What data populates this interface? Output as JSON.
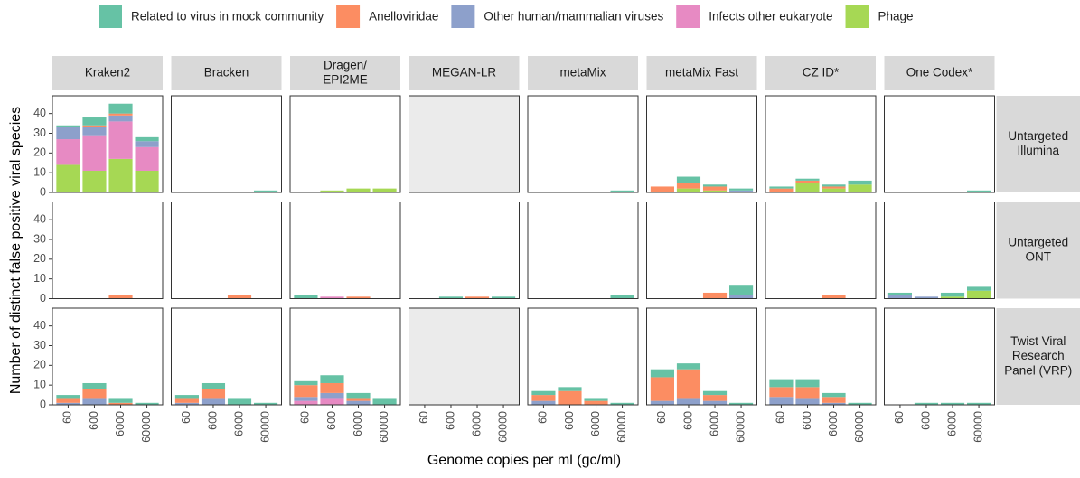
{
  "chart_data": {
    "type": "bar",
    "stacked": true,
    "xlabel": "Genome copies per ml (gc/ml)",
    "ylabel": "Number of distinct false positive viral species",
    "categories": [
      "60",
      "600",
      "6000",
      "60000"
    ],
    "ylim": [
      0,
      49
    ],
    "yticks": [
      0,
      10,
      20,
      30,
      40
    ],
    "series": [
      {
        "name": "Related to virus in mock community",
        "color": "#66c2a5"
      },
      {
        "name": "Anelloviridae",
        "color": "#fc8d62"
      },
      {
        "name": "Other human/mammalian viruses",
        "color": "#8da0cb"
      },
      {
        "name": "Infects other eukaryote",
        "color": "#e78ac3"
      },
      {
        "name": "Phage",
        "color": "#a6d854"
      }
    ],
    "columns": [
      "Kraken2",
      "Bracken",
      "Dragen/\nEPI2ME",
      "MEGAN-LR",
      "metaMix",
      "metaMix Fast",
      "CZ ID*",
      "One Codex*"
    ],
    "rows": [
      "Untargeted\nIllumina",
      "Untargeted\nONT",
      "Twist Viral\nResearch\nPanel (VRP)"
    ],
    "panels": [
      [
        [
          [
            1,
            4,
            5,
            2
          ],
          [
            0,
            1,
            1,
            0
          ],
          [
            6,
            4,
            3,
            3
          ],
          [
            13,
            18,
            19,
            12
          ],
          [
            14,
            11,
            17,
            11
          ]
        ],
        [
          [
            0,
            0,
            0,
            1
          ],
          [
            0,
            0,
            0,
            0
          ],
          [
            0,
            0,
            0,
            0
          ],
          [
            0,
            0,
            0,
            0
          ],
          [
            0,
            0,
            0,
            0
          ]
        ],
        [
          [
            0,
            0,
            0,
            0
          ],
          [
            0,
            0,
            0,
            0
          ],
          [
            0,
            0,
            0,
            0
          ],
          [
            0,
            0,
            0,
            0
          ],
          [
            0,
            1,
            2,
            2
          ]
        ],
        null,
        [
          [
            0,
            0,
            0,
            1
          ],
          [
            0,
            0,
            0,
            0
          ],
          [
            0,
            0,
            0,
            0
          ],
          [
            0,
            0,
            0,
            0
          ],
          [
            0,
            0,
            0,
            0
          ]
        ],
        [
          [
            0,
            3,
            1,
            1
          ],
          [
            3,
            3,
            2,
            0
          ],
          [
            0,
            0,
            0,
            1
          ],
          [
            0,
            0,
            0,
            0
          ],
          [
            0,
            2,
            1,
            0
          ]
        ],
        [
          [
            1,
            1,
            1,
            2
          ],
          [
            2,
            1,
            1,
            0
          ],
          [
            0,
            0,
            0,
            0
          ],
          [
            0,
            0,
            0,
            0
          ],
          [
            0,
            5,
            2,
            4
          ]
        ],
        [
          [
            0,
            0,
            0,
            1
          ],
          [
            0,
            0,
            0,
            0
          ],
          [
            0,
            0,
            0,
            0
          ],
          [
            0,
            0,
            0,
            0
          ],
          [
            0,
            0,
            0,
            0
          ]
        ]
      ],
      [
        [
          [
            0,
            0,
            0,
            0
          ],
          [
            0,
            0,
            2,
            0
          ],
          [
            0,
            0,
            0,
            0
          ],
          [
            0,
            0,
            0,
            0
          ],
          [
            0,
            0,
            0,
            0
          ]
        ],
        [
          [
            0,
            0,
            0,
            0
          ],
          [
            0,
            0,
            2,
            0
          ],
          [
            0,
            0,
            0,
            0
          ],
          [
            0,
            0,
            0,
            0
          ],
          [
            0,
            0,
            0,
            0
          ]
        ],
        [
          [
            2,
            0,
            0,
            0
          ],
          [
            0,
            0,
            1,
            0
          ],
          [
            0,
            0,
            0,
            0
          ],
          [
            0,
            1,
            0,
            0
          ],
          [
            0,
            0,
            0,
            0
          ]
        ],
        [
          [
            0,
            1,
            0,
            1
          ],
          [
            0,
            0,
            1,
            0
          ],
          [
            0,
            0,
            0,
            0
          ],
          [
            0,
            0,
            0,
            0
          ],
          [
            0,
            0,
            0,
            0
          ]
        ],
        [
          [
            0,
            0,
            0,
            2
          ],
          [
            0,
            0,
            0,
            0
          ],
          [
            0,
            0,
            0,
            0
          ],
          [
            0,
            0,
            0,
            0
          ],
          [
            0,
            0,
            0,
            0
          ]
        ],
        [
          [
            0,
            0,
            0,
            5
          ],
          [
            0,
            0,
            3,
            0
          ],
          [
            0,
            0,
            0,
            2
          ],
          [
            0,
            0,
            0,
            0
          ],
          [
            0,
            0,
            0,
            0
          ]
        ],
        [
          [
            0,
            0,
            0,
            0
          ],
          [
            0,
            0,
            2,
            0
          ],
          [
            0,
            0,
            0,
            0
          ],
          [
            0,
            0,
            0,
            0
          ],
          [
            0,
            0,
            0,
            0
          ]
        ],
        [
          [
            1,
            0,
            2,
            2
          ],
          [
            0,
            0,
            0,
            0
          ],
          [
            2,
            1,
            0,
            0
          ],
          [
            0,
            0,
            0,
            0
          ],
          [
            0,
            0,
            1,
            4
          ]
        ]
      ],
      [
        [
          [
            2,
            3,
            2,
            1
          ],
          [
            2,
            5,
            1,
            0
          ],
          [
            1,
            3,
            0,
            0
          ],
          [
            0,
            0,
            0,
            0
          ],
          [
            0,
            0,
            0,
            0
          ]
        ],
        [
          [
            2,
            3,
            3,
            1
          ],
          [
            2,
            5,
            0,
            0
          ],
          [
            1,
            3,
            0,
            0
          ],
          [
            0,
            0,
            0,
            0
          ],
          [
            0,
            0,
            0,
            0
          ]
        ],
        [
          [
            2,
            4,
            3,
            3
          ],
          [
            6,
            5,
            1,
            0
          ],
          [
            2,
            3,
            2,
            0
          ],
          [
            2,
            3,
            0,
            0
          ],
          [
            0,
            0,
            0,
            0
          ]
        ],
        null,
        [
          [
            2,
            2,
            1,
            1
          ],
          [
            3,
            7,
            2,
            0
          ],
          [
            2,
            0,
            0,
            0
          ],
          [
            0,
            0,
            0,
            0
          ],
          [
            0,
            0,
            0,
            0
          ]
        ],
        [
          [
            4,
            3,
            2,
            1
          ],
          [
            12,
            15,
            3,
            0
          ],
          [
            2,
            3,
            2,
            0
          ],
          [
            0,
            0,
            0,
            0
          ],
          [
            0,
            0,
            0,
            0
          ]
        ],
        [
          [
            4,
            4,
            2,
            1
          ],
          [
            5,
            6,
            3,
            0
          ],
          [
            4,
            3,
            1,
            0
          ],
          [
            0,
            0,
            0,
            0
          ],
          [
            0,
            0,
            0,
            0
          ]
        ],
        [
          [
            0,
            1,
            1,
            1
          ],
          [
            0,
            0,
            0,
            0
          ],
          [
            0,
            0,
            0,
            0
          ],
          [
            0,
            0,
            0,
            0
          ],
          [
            0,
            0,
            0,
            0
          ]
        ]
      ]
    ]
  }
}
